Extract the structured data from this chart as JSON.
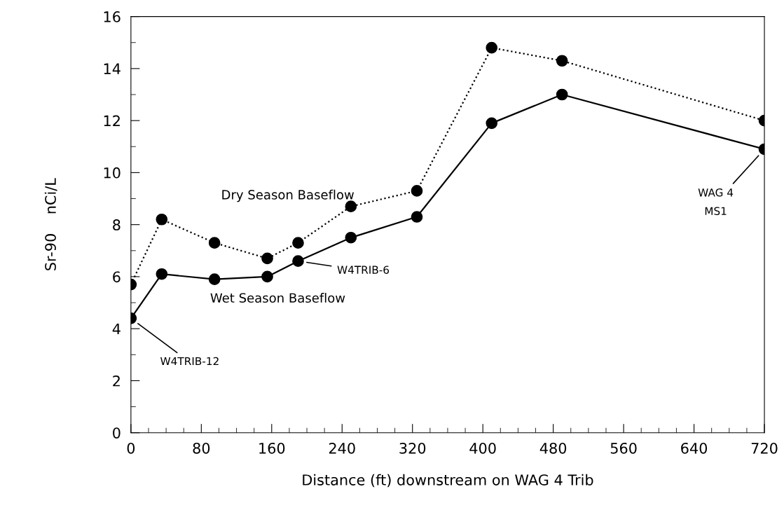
{
  "chart_data": {
    "type": "line",
    "xlabel": "Distance (ft) downstream on WAG 4 Trib",
    "ylabel": "Sr-90    nCi/L",
    "x": [
      0,
      35,
      95,
      155,
      190,
      250,
      325,
      410,
      490,
      720
    ],
    "series": [
      {
        "name": "Dry Season Baseflow",
        "color": "#000000",
        "line_style": "dotted",
        "values": [
          5.7,
          8.2,
          7.3,
          6.7,
          7.3,
          8.7,
          9.3,
          14.8,
          14.3,
          12.0
        ]
      },
      {
        "name": "Wet Season Baseflow",
        "color": "#000000",
        "line_style": "solid",
        "values": [
          4.4,
          6.1,
          5.9,
          6.0,
          6.6,
          7.5,
          8.3,
          11.9,
          13.0,
          10.9
        ]
      }
    ],
    "annotations": [
      "W4TRIB-12",
      "W4TRIB-6",
      "WAG 4\nMS1"
    ],
    "xlim": [
      0,
      720
    ],
    "xticks": [
      0,
      80,
      160,
      240,
      320,
      400,
      480,
      560,
      640,
      720
    ],
    "ylim": [
      0,
      16
    ],
    "yticks": [
      0,
      2,
      4,
      6,
      8,
      10,
      12,
      14,
      16
    ],
    "marker": "circle",
    "grid": false,
    "legend": false
  }
}
